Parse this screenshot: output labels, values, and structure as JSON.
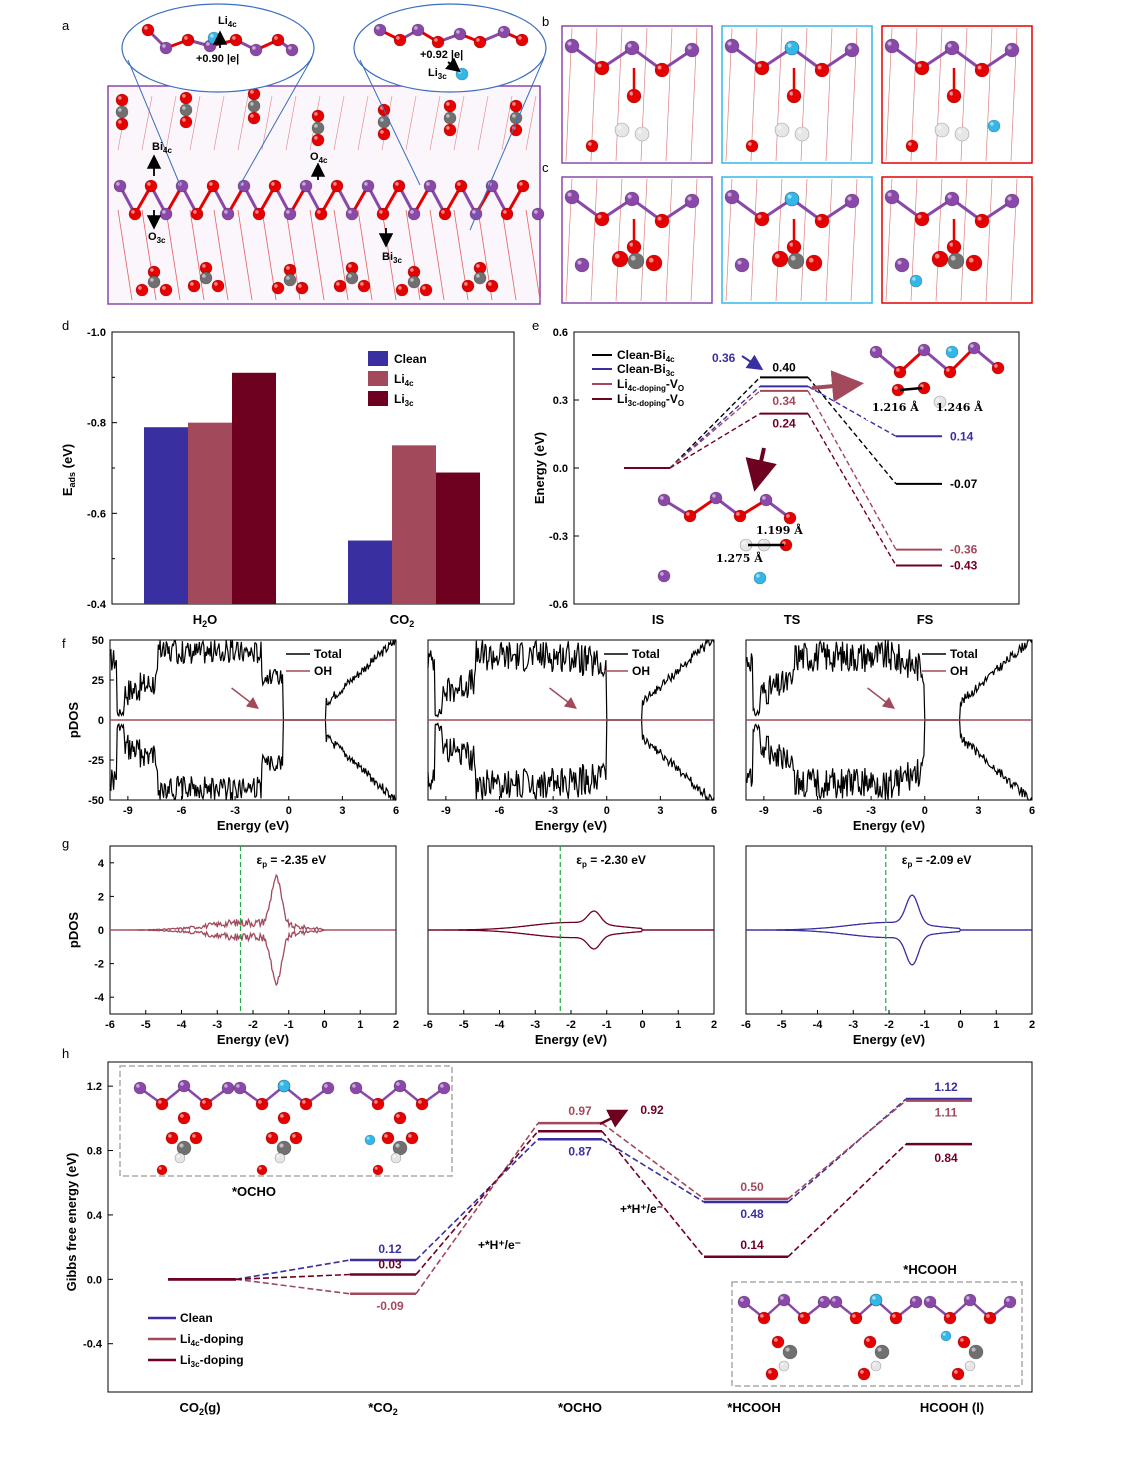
{
  "colors": {
    "clean": "#3a2fa0",
    "li4c": "#a24a5c",
    "li3c": "#6e0020",
    "black": "#000000",
    "green": "#22aa44",
    "O": "#e60000",
    "Bi": "#8a48a8",
    "Li": "#33b7e8",
    "C": "#707070",
    "H": "#e6e6e6"
  },
  "panels": {
    "a": "a",
    "b": "b",
    "c": "c",
    "d": "d",
    "e": "e",
    "f": "f",
    "g": "g",
    "h": "h"
  },
  "panel_a": {
    "li4c": "Li",
    "li4c_sub": "4c",
    "charge1": "+0.90 |e|",
    "charge2": "+0.92 |e|",
    "li3c": "Li",
    "li3c_sub": "3c",
    "bi4c": "Bi",
    "bi4c_sub": "4c",
    "o4c": "O",
    "o4c_sub": "4c",
    "o3c": "O",
    "o3c_sub": "3c",
    "bi3c": "Bi",
    "bi3c_sub": "3c"
  },
  "chart_data": [
    {
      "panel": "d",
      "type": "bar",
      "ylabel": "E",
      "ylabel_sub": "ads",
      "ylabel_unit": " (eV)",
      "ylim": [
        -0.4,
        -1.0
      ],
      "yticks": [
        "-1.0",
        "-0.8",
        "-0.6",
        "-0.4"
      ],
      "categories": [
        "H2O",
        "CO2"
      ],
      "category_labels": [
        {
          "main": "H",
          "sub": "2",
          "tail": "O"
        },
        {
          "main": "CO",
          "sub": "2",
          "tail": ""
        }
      ],
      "series": [
        {
          "name": "Clean",
          "values": [
            -0.79,
            -0.54
          ]
        },
        {
          "name": "Li4c",
          "name_main": "Li",
          "name_sub": "4c",
          "values": [
            -0.8,
            -0.75
          ]
        },
        {
          "name": "Li3c",
          "name_main": "Li",
          "name_sub": "3c",
          "values": [
            -0.91,
            -0.69
          ]
        }
      ]
    },
    {
      "panel": "e",
      "type": "line",
      "ylabel": "Energy (eV)",
      "ylim": [
        -0.6,
        0.6
      ],
      "yticks": [
        "-0.6",
        "-0.3",
        "0.0",
        "0.3",
        "0.6"
      ],
      "xticks": [
        "IS",
        "TS",
        "FS"
      ],
      "series": [
        {
          "name": "Clean-Bi4c",
          "main": "Clean-Bi",
          "sub": "4c",
          "values": [
            0,
            0.4,
            -0.07
          ],
          "labels": [
            "",
            "0.40",
            "-0.07"
          ]
        },
        {
          "name": "Clean-Bi3c",
          "main": "Clean-Bi",
          "sub": "3c",
          "values": [
            0,
            0.36,
            0.14
          ],
          "labels": [
            "",
            "0.36",
            "0.14"
          ]
        },
        {
          "name": "Li4c-doping-VO",
          "main": "Li",
          "sub": "4c-doping",
          "tail": "-V",
          "tail_sub": "O",
          "values": [
            0,
            0.34,
            -0.36
          ],
          "labels": [
            "",
            "0.34",
            "-0.36"
          ]
        },
        {
          "name": "Li3c-doping-VO",
          "main": "Li",
          "sub": "3c-doping",
          "tail": "-V",
          "tail_sub": "O",
          "values": [
            0,
            0.24,
            -0.43
          ],
          "labels": [
            "",
            "0.24",
            "-0.43"
          ]
        }
      ],
      "insets": {
        "d1": "1.246 Å",
        "d2": "1.216 Å",
        "d3": "1.199 Å",
        "d4": "1.275 Å"
      }
    },
    {
      "panel": "f",
      "type": "line",
      "ylabel": "pDOS",
      "xlabel": "Energy (eV)",
      "ylim": [
        -50,
        50
      ],
      "xlim": [
        -10,
        6
      ],
      "yticks": [
        "50",
        "25",
        "0",
        "-25",
        "-50"
      ],
      "xticks": [
        "-9",
        "-6",
        "-3",
        "0",
        "3",
        "6"
      ],
      "legend": [
        "Total",
        "OH"
      ]
    },
    {
      "panel": "g",
      "type": "line",
      "ylabel": "pDOS",
      "xlabel": "Energy (eV)",
      "ylim": [
        -5,
        5
      ],
      "xlim": [
        -6,
        2
      ],
      "yticks": [
        "4",
        "2",
        "0",
        "-2",
        "-4"
      ],
      "xticks": [
        "-6",
        "-5",
        "-4",
        "-3",
        "-2",
        "-1",
        "0",
        "1",
        "2"
      ],
      "subplots": [
        {
          "label": "ε",
          "sub": "p",
          "value": " = -2.35 eV",
          "ep": -2.35,
          "color": "li4c"
        },
        {
          "label": "ε",
          "sub": "p",
          "value": " = -2.30 eV",
          "ep": -2.3,
          "color": "li3c"
        },
        {
          "label": "ε",
          "sub": "p",
          "value": " = -2.09 eV",
          "ep": -2.09,
          "color": "clean"
        }
      ]
    },
    {
      "panel": "h",
      "type": "line",
      "ylabel": "Gibbs free energy (eV)",
      "ylim": [
        -0.7,
        1.35
      ],
      "yticks": [
        "-0.4",
        "0.0",
        "0.4",
        "0.8",
        "1.2"
      ],
      "categories": [
        "CO2(g)",
        "*CO2",
        "*OCHO",
        "*HCOOH",
        "HCOOH (l)"
      ],
      "category_labels": [
        {
          "main": "CO",
          "sub": "2",
          "tail": "(g)"
        },
        {
          "main": "*CO",
          "sub": "2",
          "tail": ""
        },
        {
          "main": "*OCHO",
          "sub": "",
          "tail": ""
        },
        {
          "main": "*HCOOH",
          "sub": "",
          "tail": ""
        },
        {
          "main": "HCOOH (l)",
          "sub": "",
          "tail": ""
        }
      ],
      "series": [
        {
          "name": "Clean",
          "values": [
            0,
            0.12,
            0.87,
            0.48,
            1.12
          ]
        },
        {
          "name": "Li4c-doping",
          "main": "Li",
          "sub": "4c",
          "tail": "-doping",
          "values": [
            0,
            -0.09,
            0.97,
            0.5,
            1.11
          ]
        },
        {
          "name": "Li3c-doping",
          "main": "Li",
          "sub": "3c",
          "tail": "-doping",
          "values": [
            0,
            0.03,
            0.92,
            0.14,
            0.84
          ]
        }
      ],
      "annotations": {
        "step1": "+*H⁺/e⁻",
        "step2": "+*H⁺/e⁻",
        "ocho": "*OCHO",
        "hcooh": "*HCOOH"
      },
      "value_labels": {
        "c1": "0.12",
        "c2": "0.87",
        "c3": "0.48",
        "c4": "1.12",
        "l41": "-0.09",
        "l42": "0.97",
        "l43": "0.50",
        "l44": "1.11",
        "l31": "0.03",
        "l32": "0.92",
        "l33": "0.14",
        "l34": "0.84"
      }
    }
  ]
}
